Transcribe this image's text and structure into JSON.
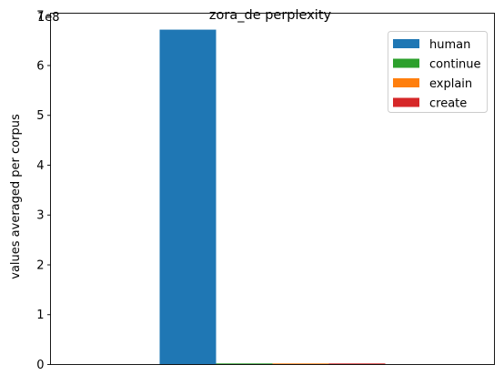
{
  "chart_data": {
    "type": "bar",
    "title": "zora_de perplexity",
    "xlabel": "",
    "ylabel": "values averaged per corpus",
    "y_scale_label": "1e8",
    "ylim": [
      0,
      705000000
    ],
    "y_ticks": [
      0,
      100000000,
      200000000,
      300000000,
      400000000,
      500000000,
      600000000,
      700000000
    ],
    "y_tick_labels": [
      "0",
      "1",
      "2",
      "3",
      "4",
      "5",
      "6",
      "7"
    ],
    "x_ticks_shown": false,
    "grid": false,
    "legend": "top-right",
    "categories": [
      ""
    ],
    "series": [
      {
        "name": "human",
        "values": [
          672000000
        ],
        "color": "#1f77b4"
      },
      {
        "name": "continue",
        "values": [
          150000
        ],
        "color": "#2ca02c"
      },
      {
        "name": "explain",
        "values": [
          120000
        ],
        "color": "#ff7f0e"
      },
      {
        "name": "create",
        "values": [
          180000
        ],
        "color": "#d62728"
      }
    ]
  }
}
